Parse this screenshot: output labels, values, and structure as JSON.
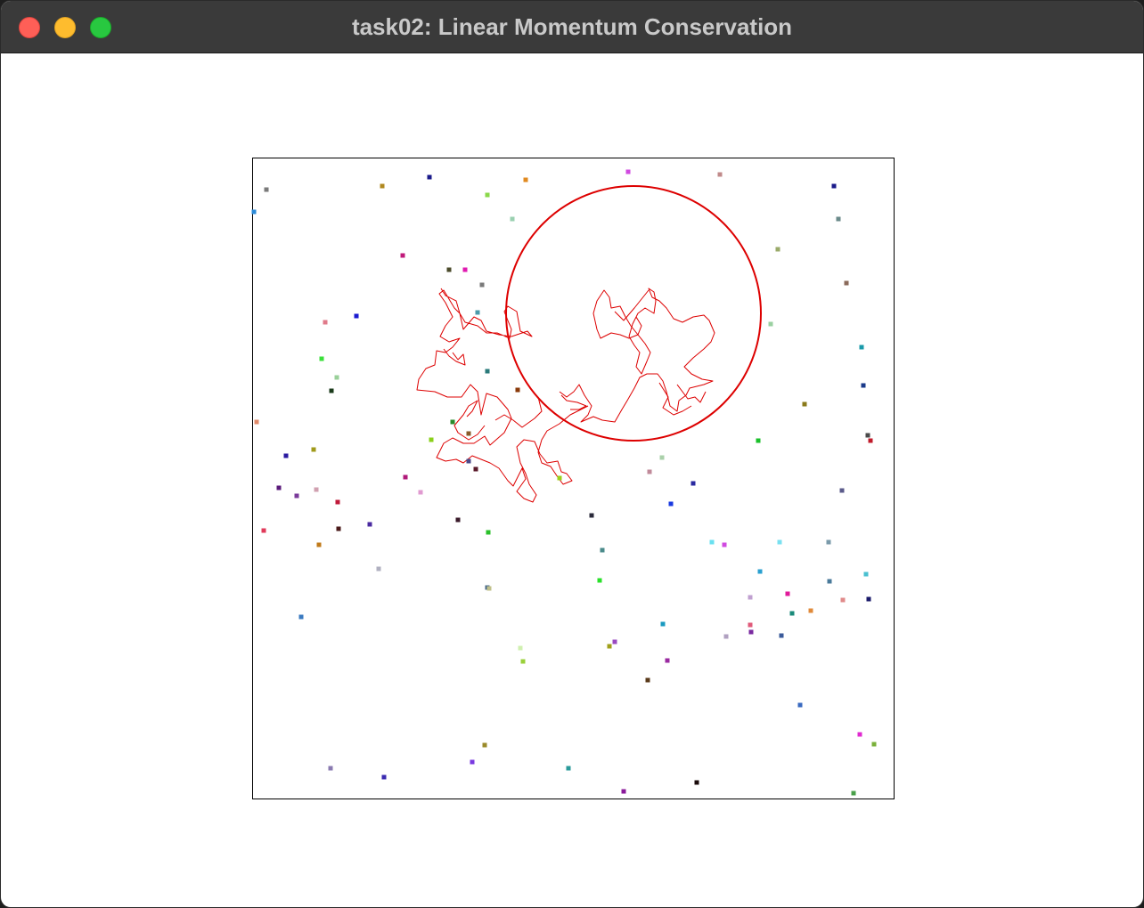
{
  "window": {
    "title": "task02: Linear Momentum Conservation"
  },
  "icons": {
    "close": "close-traffic-light-icon",
    "minimize": "minimize-traffic-light-icon",
    "zoom": "zoom-traffic-light-icon"
  },
  "colors": {
    "close": "#fe5f57",
    "minimize": "#febc2e",
    "zoom": "#28c840",
    "trail": "#dd0000",
    "circle": "#dd0000",
    "box_border": "#000000"
  }
}
